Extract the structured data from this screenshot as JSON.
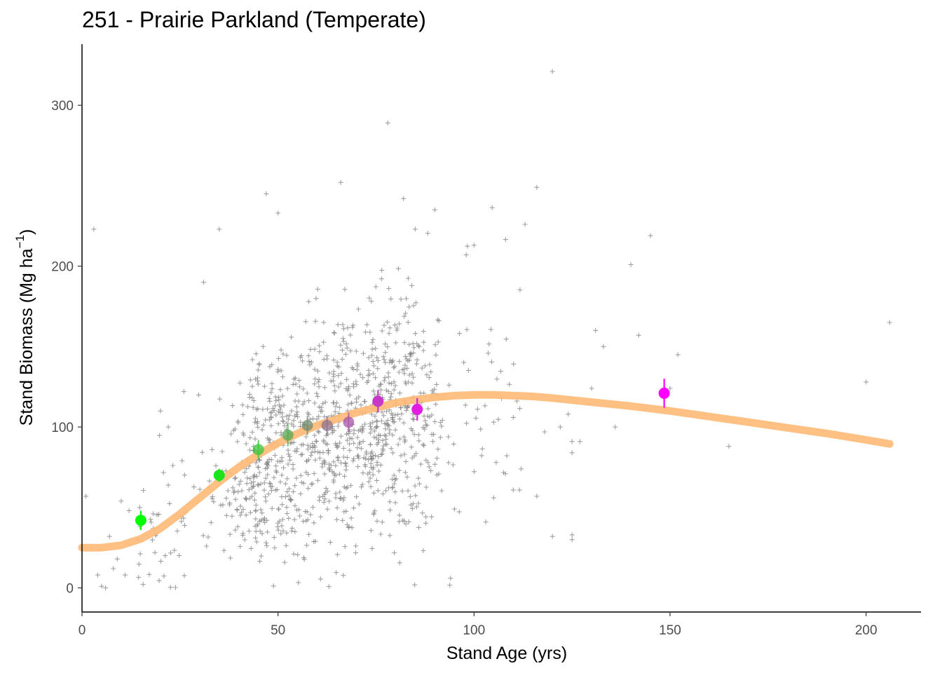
{
  "chart_data": {
    "type": "scatter",
    "title": "251 - Prairie Parkland (Temperate)",
    "xlabel": "Stand Age (yrs)",
    "ylabel_main": "Stand Biomass (Mg ha",
    "ylabel_sup": "−1",
    "ylabel_close": ")",
    "xlim": [
      0,
      214
    ],
    "ylim": [
      -15,
      338
    ],
    "x_ticks": [
      0,
      50,
      100,
      150,
      200
    ],
    "y_ticks": [
      0,
      100,
      200,
      300
    ],
    "grid": false,
    "colors": {
      "fit": "#ffbb78",
      "points": "#808080",
      "bin_low": "#00ff00",
      "bin_high": "#ff00ff"
    },
    "fitted_curve": {
      "x": [
        0,
        5,
        10,
        15,
        20,
        25,
        30,
        35,
        40,
        45,
        50,
        55,
        60,
        65,
        70,
        75,
        80,
        85,
        90,
        95,
        100,
        105,
        110,
        115,
        120,
        130,
        140,
        150,
        160,
        170,
        180,
        190,
        200,
        206
      ],
      "y": [
        25,
        25,
        26.5,
        30.5,
        37,
        46,
        56,
        66,
        75,
        83,
        90,
        96,
        101,
        105,
        109,
        112,
        115,
        117,
        118.5,
        119.5,
        120,
        120,
        119.5,
        119,
        118,
        115.5,
        113,
        110,
        106.5,
        103,
        99.5,
        96,
        92,
        89.5
      ]
    },
    "binned_means": [
      {
        "x": 15,
        "y": 42,
        "err": 6
      },
      {
        "x": 35,
        "y": 70,
        "err": 4
      },
      {
        "x": 45,
        "y": 86,
        "err": 6
      },
      {
        "x": 52.5,
        "y": 95,
        "err": 7
      },
      {
        "x": 57.5,
        "y": 101,
        "err": 6
      },
      {
        "x": 62.5,
        "y": 101,
        "err": 6
      },
      {
        "x": 68,
        "y": 103,
        "err": 6
      },
      {
        "x": 75.5,
        "y": 116,
        "err": 7
      },
      {
        "x": 85.5,
        "y": 111,
        "err": 7
      },
      {
        "x": 148.5,
        "y": 121,
        "err": 9
      }
    ],
    "outlier_points": [
      [
        3,
        223
      ],
      [
        1,
        57
      ],
      [
        4,
        8
      ],
      [
        5,
        1
      ],
      [
        6,
        0
      ],
      [
        7,
        32
      ],
      [
        8,
        12
      ],
      [
        9,
        18
      ],
      [
        10,
        54
      ],
      [
        11,
        8
      ],
      [
        12,
        48
      ],
      [
        120,
        321
      ],
      [
        78,
        289
      ],
      [
        116,
        249
      ],
      [
        113,
        226
      ],
      [
        145,
        219
      ],
      [
        140,
        201
      ],
      [
        142,
        157
      ],
      [
        150,
        124
      ],
      [
        165,
        88
      ],
      [
        200,
        128
      ],
      [
        206,
        165
      ],
      [
        152,
        145
      ],
      [
        131,
        160
      ],
      [
        133,
        150
      ],
      [
        130,
        124
      ],
      [
        124,
        108
      ],
      [
        136,
        100
      ],
      [
        125,
        91
      ],
      [
        127,
        91
      ],
      [
        125,
        84
      ],
      [
        122,
        100
      ],
      [
        110,
        106
      ],
      [
        105,
        103
      ],
      [
        118,
        97
      ],
      [
        100,
        213
      ],
      [
        98,
        207
      ],
      [
        95,
        49
      ],
      [
        103,
        41
      ],
      [
        105,
        56
      ],
      [
        108,
        71
      ],
      [
        112,
        74
      ],
      [
        116,
        57
      ],
      [
        120,
        32
      ],
      [
        125,
        33
      ],
      [
        125,
        30
      ],
      [
        94,
        6
      ],
      [
        88,
        101
      ],
      [
        90,
        235
      ],
      [
        82,
        242
      ],
      [
        85,
        223
      ],
      [
        66,
        252
      ],
      [
        47,
        245
      ],
      [
        50,
        233
      ],
      [
        35,
        223
      ],
      [
        31,
        190
      ],
      [
        26,
        122
      ],
      [
        20,
        110
      ],
      [
        22,
        100
      ]
    ],
    "cluster": {
      "count": 1150,
      "seed": 12345,
      "x_range": [
        14,
        112
      ],
      "y_sd": 36
    }
  }
}
